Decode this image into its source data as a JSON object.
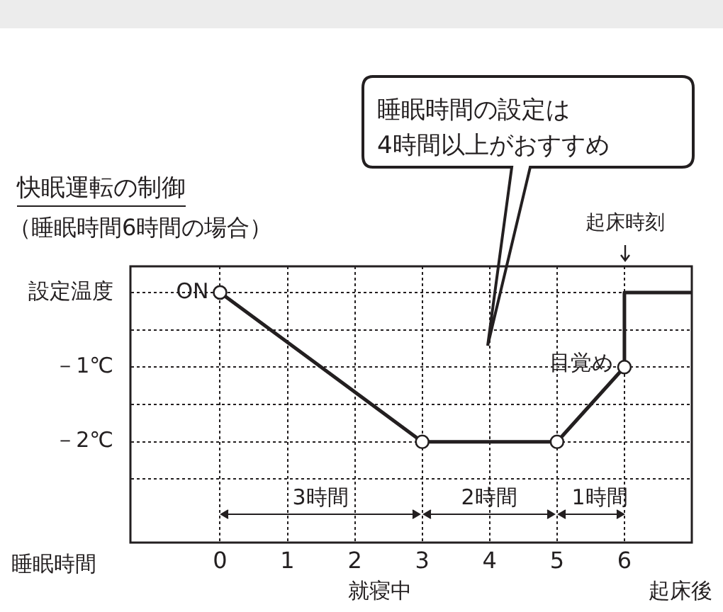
{
  "chart_data": {
    "type": "line",
    "title": "快眠運転の制御",
    "subtitle": "（睡眠時間6時間の場合）",
    "xlabel": "睡眠時間",
    "xlim": [
      -1.33,
      7
    ],
    "xticks": [
      0,
      1,
      2,
      3,
      4,
      5,
      6
    ],
    "ylim": [
      -3.35,
      0.35
    ],
    "yticks": [
      {
        "value": 0,
        "label": "設定温度"
      },
      {
        "value": -0.5,
        "label": null
      },
      {
        "value": -1,
        "label": "－1℃"
      },
      {
        "value": -1.5,
        "label": null
      },
      {
        "value": -2,
        "label": "－2℃"
      },
      {
        "value": -2.5,
        "label": null
      }
    ],
    "series": [
      {
        "x": [
          0,
          3,
          5,
          6
        ],
        "values": [
          0,
          -2,
          -2,
          -1
        ],
        "color": "#231f20",
        "marker": "circle"
      },
      {
        "x": [
          6,
          6,
          7
        ],
        "values": [
          -1,
          0,
          0
        ],
        "color": "#231f20",
        "marker": "none"
      }
    ],
    "annotations": [
      {
        "text": "ON",
        "x": 0,
        "y": 0
      },
      {
        "text": "目覚め",
        "x": 6,
        "y": -1
      },
      "起床時刻",
      "3時間",
      "2時間",
      "1時間",
      "就寝中",
      "起床後",
      "睡眠時間の設定は\n4時間以上がおすすめ"
    ],
    "grid": true,
    "legend": false,
    "line_style": "solid"
  }
}
